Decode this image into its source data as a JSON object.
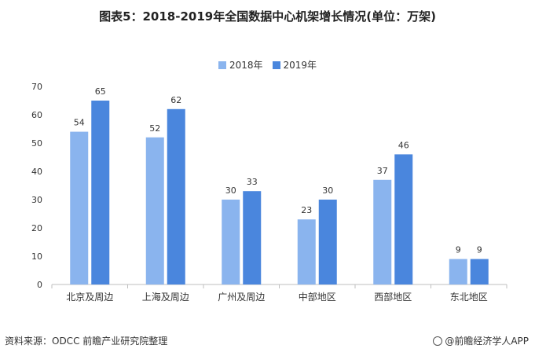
{
  "title": "图表5：2018-2019年全国数据中心机架增长情况(单位：万架)",
  "source": "资料来源：ODCC 前瞻产业研究院整理",
  "brand": "@前瞻经济学人APP",
  "chart_data": {
    "type": "bar",
    "categories": [
      "北京及周边",
      "上海及周边",
      "广州及周边",
      "中部地区",
      "西部地区",
      "东北地区"
    ],
    "series": [
      {
        "name": "2018年",
        "values": [
          54,
          52,
          30,
          23,
          37,
          9
        ],
        "color": "#8AB4EE"
      },
      {
        "name": "2019年",
        "values": [
          65,
          62,
          33,
          30,
          46,
          9
        ],
        "color": "#4A86DD"
      }
    ],
    "ylim": [
      0,
      70
    ],
    "yticks": [
      0,
      10,
      20,
      30,
      40,
      50,
      60,
      70
    ],
    "legend_position": "top-center",
    "grid": false
  }
}
